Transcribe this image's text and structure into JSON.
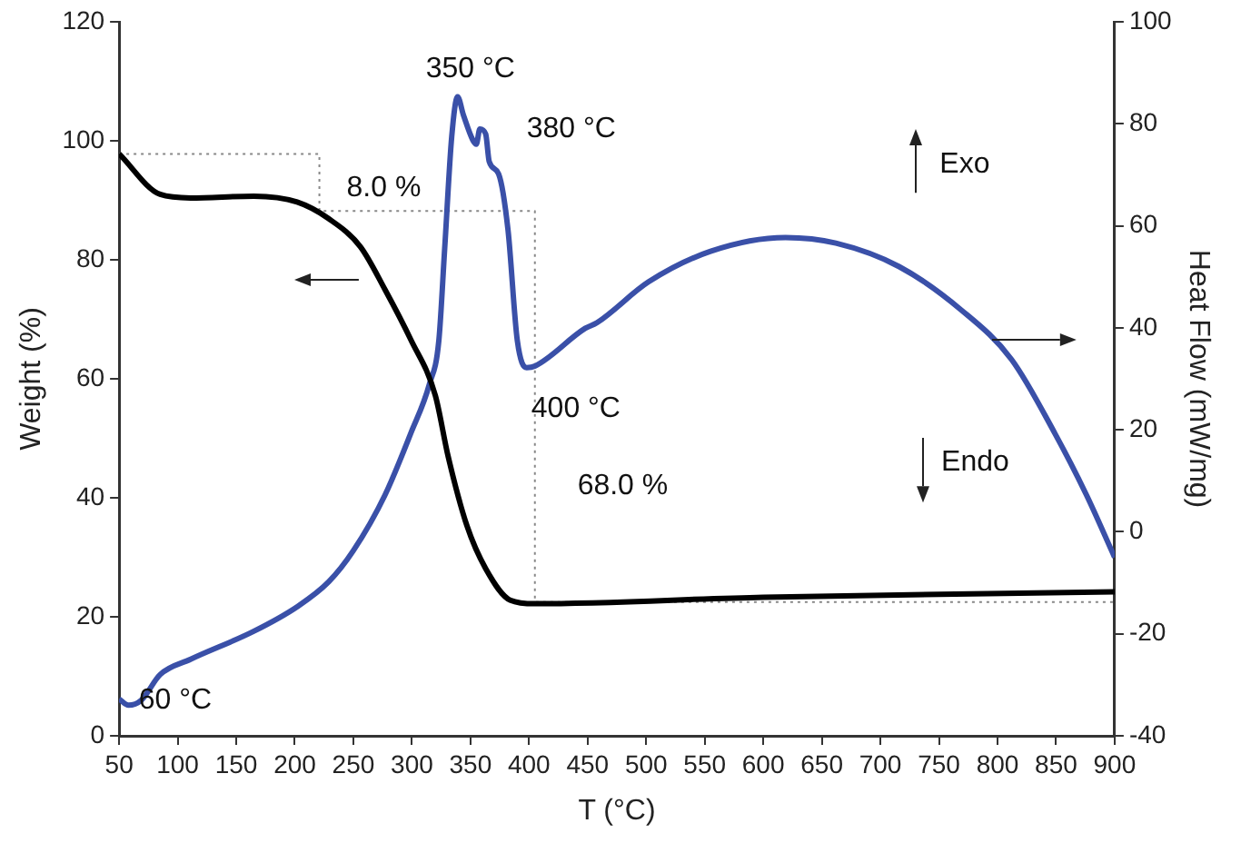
{
  "chart_data": {
    "type": "line",
    "xlabel": "T (°C)",
    "ylabel": "Weight (%)",
    "y2label": "Heat Flow (mW/mg)",
    "xlim": [
      50,
      900
    ],
    "xticks": [
      50,
      100,
      150,
      200,
      250,
      300,
      350,
      400,
      450,
      500,
      550,
      600,
      650,
      700,
      750,
      800,
      850,
      900
    ],
    "ylim": [
      0,
      120
    ],
    "yticks": [
      0,
      20,
      40,
      60,
      80,
      100,
      120
    ],
    "y2lim": [
      -40,
      100
    ],
    "y2ticks": [
      -40,
      -20,
      0,
      20,
      40,
      60,
      80,
      100
    ],
    "grid": false,
    "legend": false,
    "marker": "none",
    "series": [
      {
        "type": "line",
        "color": "#000000",
        "axis": "y",
        "x": [
          50,
          85,
          111,
          165,
          202,
          229,
          256,
          277,
          299,
          320,
          331,
          347,
          363,
          384,
          405,
          600,
          900
        ],
        "values": [
          97.8,
          91,
          90.4,
          90.7,
          89.7,
          86.9,
          82.2,
          75,
          66.6,
          57.2,
          46.9,
          35.3,
          28.1,
          22.8,
          22.2,
          23.3,
          24.2
        ]
      },
      {
        "type": "line",
        "color": "#3a50a8",
        "axis": "y2",
        "x": [
          50,
          58,
          69,
          85,
          111,
          165,
          202,
          229,
          250,
          277,
          299,
          315,
          323,
          328,
          334,
          339,
          344,
          352,
          355,
          358,
          363,
          366,
          374,
          382,
          390,
          398,
          405,
          448,
          458,
          502,
          555,
          619,
          662,
          716,
          769,
          812,
          849,
          876,
          900
        ],
        "values": [
          -32.8,
          -34,
          -33,
          -28,
          -25,
          -19.5,
          -14.7,
          -9.8,
          -3.7,
          7.2,
          19.3,
          29,
          37.5,
          55.6,
          77.5,
          85.3,
          81.7,
          76.8,
          76,
          79,
          78,
          72.6,
          70.2,
          59.3,
          37.5,
          32.2,
          32.5,
          39.9,
          41,
          49,
          55,
          57.7,
          56.6,
          52,
          43.5,
          33.8,
          19.3,
          7.2,
          -5
        ]
      },
      {
        "type": "line",
        "color": "#888888",
        "axis": "y",
        "line_style": "dotted",
        "x": [
          50,
          221,
          221,
          405,
          405,
          900
        ],
        "values": [
          97.8,
          97.8,
          88.2,
          88.2,
          22.5,
          22.5
        ]
      }
    ],
    "annotations": [
      "350 °C",
      "380 °C",
      "400 °C",
      "60 °C",
      "8.0 %",
      "68.0 %",
      "Exo",
      "Endo"
    ]
  }
}
